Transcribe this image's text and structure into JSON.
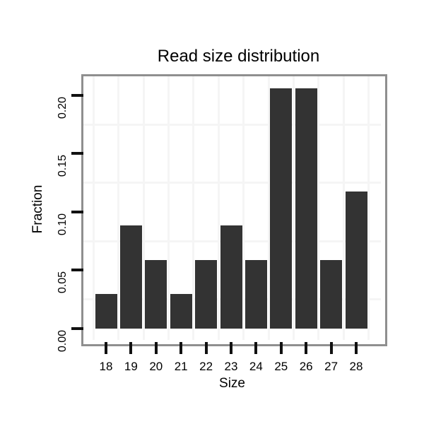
{
  "chart_data": {
    "type": "bar",
    "title": "Read size distribution",
    "xlabel": "Size",
    "ylabel": "Fraction",
    "categories": [
      "18",
      "19",
      "20",
      "21",
      "22",
      "23",
      "24",
      "25",
      "26",
      "27",
      "28"
    ],
    "values": [
      0.0294,
      0.0882,
      0.0588,
      0.0294,
      0.0588,
      0.0882,
      0.0588,
      0.2059,
      0.2059,
      0.0588,
      0.1176
    ],
    "ylim": [
      -0.0097,
      0.21636
    ],
    "yticks": {
      "values": [
        0.0,
        0.05,
        0.1,
        0.15,
        0.2
      ],
      "labels": [
        "0.00",
        "0.05",
        "0.10",
        "0.15",
        "0.20"
      ]
    },
    "minor_gridlines_y": [
      0.025,
      0.075,
      0.125,
      0.175
    ],
    "grid": "minor horizontal lines and category-boundary vertical lines, very faint",
    "legend": "none",
    "colors": {
      "bar": "#333333",
      "panel_border": "#8f8f8f",
      "gridline": "#f5f5f5",
      "tick": "#111111",
      "text": "#000000",
      "background": "#ffffff"
    }
  }
}
